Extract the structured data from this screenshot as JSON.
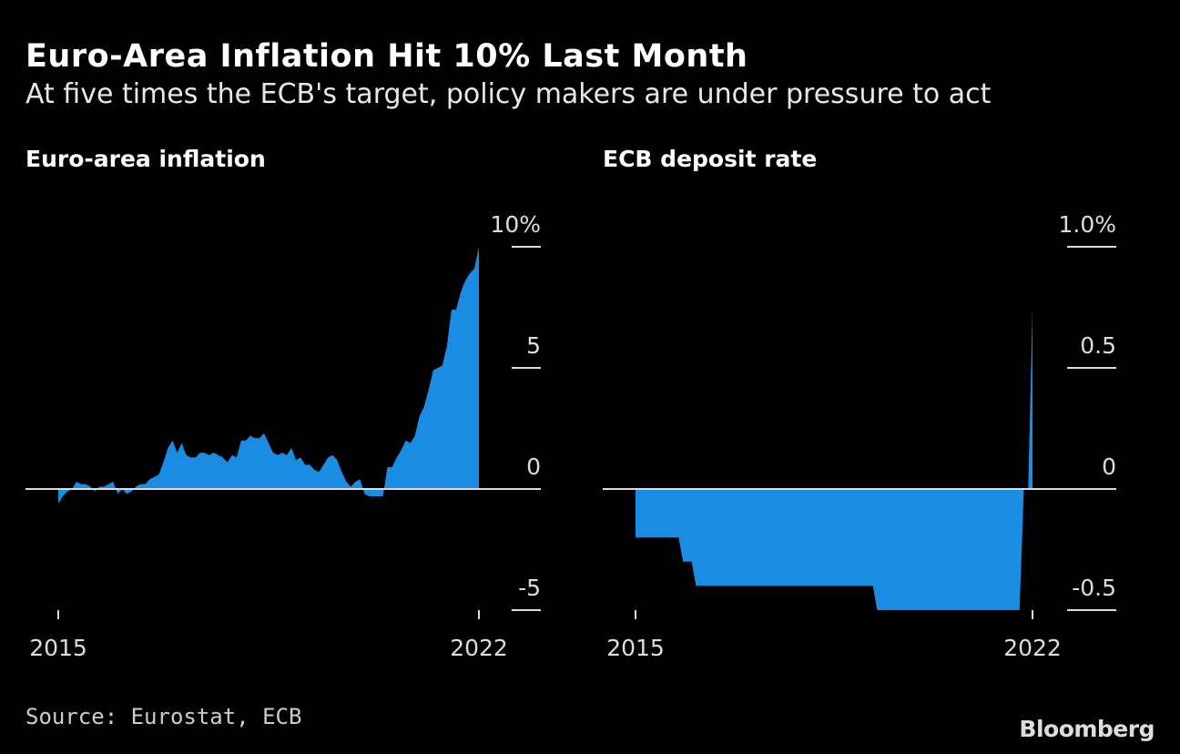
{
  "title": "Euro-Area Inflation Hit 10% Last Month",
  "subtitle": "At five times the ECB's target, policy makers are under pressure to act",
  "source": "Source: Eurostat, ECB",
  "logo": "Bloomberg",
  "colors": {
    "fill": "#1a8de3",
    "background": "#000000",
    "axis": "#dddddd"
  },
  "chart_data": [
    {
      "type": "area",
      "title": "Euro-area inflation",
      "x_start": "2015-01",
      "x_end": "2022-09",
      "x_ticks": [
        {
          "index": 0,
          "label": "2015"
        },
        {
          "index": 92,
          "label": "2022"
        }
      ],
      "y_ticks": [
        {
          "value": 10,
          "label": "10%"
        },
        {
          "value": 5,
          "label": "5"
        },
        {
          "value": 0,
          "label": "0"
        },
        {
          "value": -5,
          "label": "-5"
        }
      ],
      "ylim": [
        -5,
        10
      ],
      "values": [
        -0.6,
        -0.3,
        -0.1,
        0.0,
        0.3,
        0.2,
        0.2,
        0.1,
        -0.1,
        0.1,
        0.1,
        0.2,
        0.3,
        -0.2,
        0.0,
        -0.2,
        -0.1,
        0.1,
        0.2,
        0.2,
        0.4,
        0.5,
        0.6,
        1.1,
        1.7,
        2.0,
        1.5,
        1.9,
        1.4,
        1.3,
        1.3,
        1.5,
        1.5,
        1.4,
        1.5,
        1.4,
        1.3,
        1.1,
        1.4,
        1.3,
        2.0,
        2.0,
        2.2,
        2.1,
        2.1,
        2.3,
        1.9,
        1.5,
        1.4,
        1.5,
        1.4,
        1.7,
        1.2,
        1.3,
        1.0,
        1.0,
        0.8,
        0.7,
        1.0,
        1.3,
        1.4,
        1.2,
        0.7,
        0.3,
        0.1,
        0.3,
        0.4,
        -0.2,
        -0.3,
        -0.3,
        -0.3,
        -0.3,
        0.9,
        0.9,
        1.3,
        1.6,
        2.0,
        1.9,
        2.2,
        3.0,
        3.4,
        4.1,
        4.9,
        5.0,
        5.1,
        5.9,
        7.4,
        7.4,
        8.1,
        8.6,
        8.9,
        9.1,
        10.0
      ]
    },
    {
      "type": "area",
      "title": "ECB deposit rate",
      "x_start": "2015-01",
      "x_end": "2022-09",
      "x_ticks": [
        {
          "index": 0,
          "label": "2015"
        },
        {
          "index": 92,
          "label": "2022"
        }
      ],
      "y_ticks": [
        {
          "value": 1.0,
          "label": "1.0%"
        },
        {
          "value": 0.5,
          "label": "0.5"
        },
        {
          "value": 0,
          "label": "0"
        },
        {
          "value": -0.5,
          "label": "-0.5"
        }
      ],
      "ylim": [
        -0.5,
        1.0
      ],
      "values": [
        -0.2,
        -0.2,
        -0.2,
        -0.2,
        -0.2,
        -0.2,
        -0.2,
        -0.2,
        -0.2,
        -0.2,
        -0.2,
        -0.3,
        -0.3,
        -0.3,
        -0.4,
        -0.4,
        -0.4,
        -0.4,
        -0.4,
        -0.4,
        -0.4,
        -0.4,
        -0.4,
        -0.4,
        -0.4,
        -0.4,
        -0.4,
        -0.4,
        -0.4,
        -0.4,
        -0.4,
        -0.4,
        -0.4,
        -0.4,
        -0.4,
        -0.4,
        -0.4,
        -0.4,
        -0.4,
        -0.4,
        -0.4,
        -0.4,
        -0.4,
        -0.4,
        -0.4,
        -0.4,
        -0.4,
        -0.4,
        -0.4,
        -0.4,
        -0.4,
        -0.4,
        -0.4,
        -0.4,
        -0.4,
        -0.4,
        -0.5,
        -0.5,
        -0.5,
        -0.5,
        -0.5,
        -0.5,
        -0.5,
        -0.5,
        -0.5,
        -0.5,
        -0.5,
        -0.5,
        -0.5,
        -0.5,
        -0.5,
        -0.5,
        -0.5,
        -0.5,
        -0.5,
        -0.5,
        -0.5,
        -0.5,
        -0.5,
        -0.5,
        -0.5,
        -0.5,
        -0.5,
        -0.5,
        -0.5,
        -0.5,
        -0.5,
        -0.5,
        -0.5,
        -0.5,
        0.0,
        0.0,
        0.75
      ]
    }
  ]
}
